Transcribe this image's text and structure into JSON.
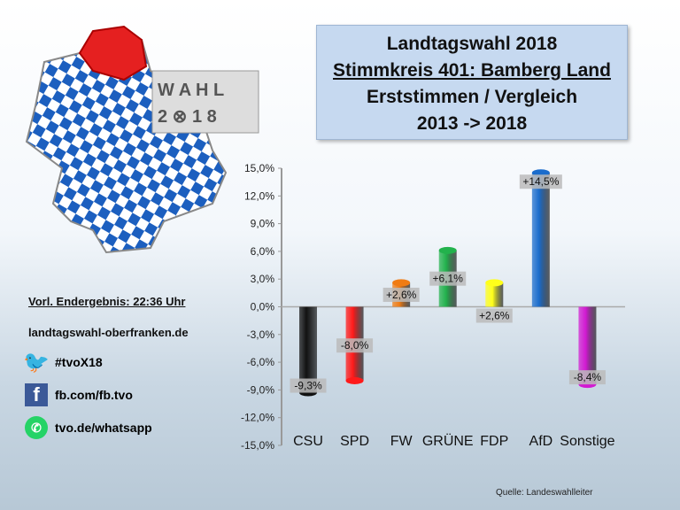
{
  "title": {
    "line1": "Landtagswahl 2018",
    "line2": "Stimmkreis 401: Bamberg Land",
    "line3": "Erststimmen / Vergleich",
    "line4": "2013 -> 2018"
  },
  "logo": {
    "text": "WAHL 2018"
  },
  "info": {
    "result": "Vorl. Endergebnis: 22:36 Uhr",
    "website": "landtagswahl-oberfranken.de"
  },
  "social": [
    {
      "icon": "twitter-icon",
      "label": "#tvoX18",
      "color": "#1da1f2"
    },
    {
      "icon": "facebook-icon",
      "label": "fb.com/fb.tvo",
      "color": "#3b5998"
    },
    {
      "icon": "whatsapp-icon",
      "label": "tvo.de/whatsapp",
      "color": "#25d366"
    }
  ],
  "source": "Quelle: Landeswahlleiter",
  "chart_data": {
    "type": "bar",
    "title": "Erststimmen / Vergleich 2013 -> 2018",
    "categories": [
      "CSU",
      "SPD",
      "FW",
      "GRÜNE",
      "FDP",
      "AfD",
      "Sonstige"
    ],
    "values": [
      -9.3,
      -8.0,
      2.6,
      6.1,
      2.6,
      14.5,
      -8.4
    ],
    "labels": [
      "-9,3%",
      "-8,0%",
      "+2,6%",
      "+6,1%",
      "+2,6%",
      "+14,5%",
      "-8,4%"
    ],
    "colors": [
      "#111111",
      "#ff1a1a",
      "#f07c14",
      "#22b24c",
      "#ffff1a",
      "#1a6ccc",
      "#d21ad2"
    ],
    "yticks": [
      "15,0%",
      "12,0%",
      "9,0%",
      "6,0%",
      "3,0%",
      "0,0%",
      "-3,0%",
      "-6,0%",
      "-9,0%",
      "-12,0%",
      "-15,0%"
    ],
    "ylim": [
      -15,
      15
    ],
    "grid": false
  }
}
